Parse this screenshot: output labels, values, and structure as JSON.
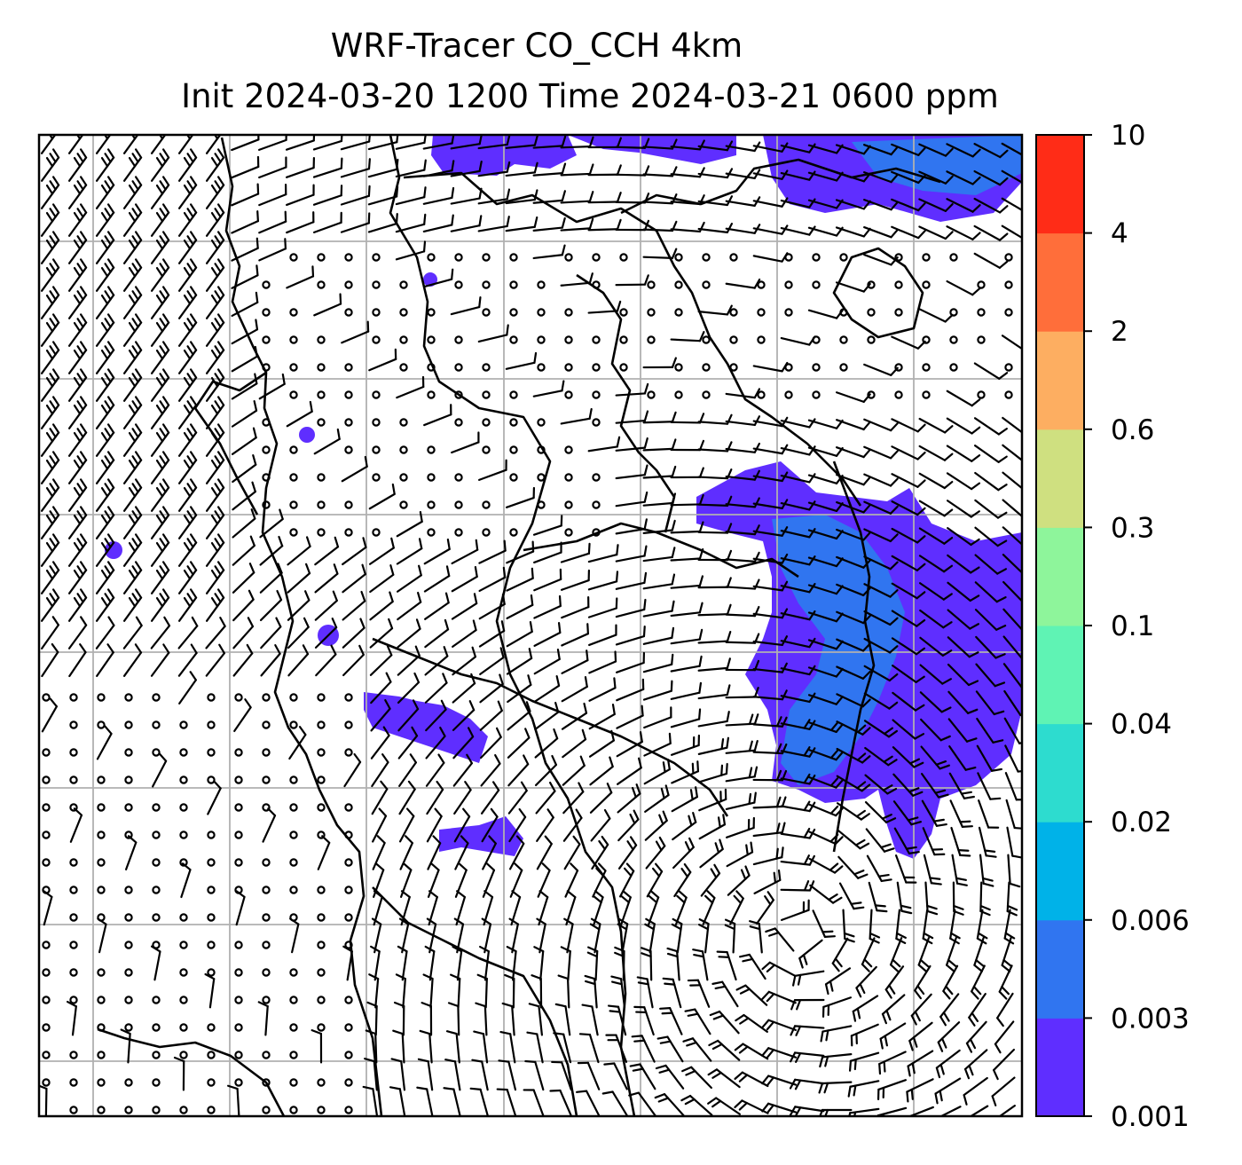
{
  "title": {
    "line1": "WRF-Tracer CO_CCH 4km",
    "line2": "Init 2024-03-20 1200 Time 2024-03-21 0600 ppm"
  },
  "colorbar": {
    "levels": [
      "0.001",
      "0.003",
      "0.006",
      "0.02",
      "0.04",
      "0.1",
      "0.3",
      "0.6",
      "2",
      "4",
      "10"
    ],
    "colors": [
      "#5f2eff",
      "#3075f0",
      "#00b2e8",
      "#2ddccf",
      "#5ff3b4",
      "#8ef59b",
      "#cfe080",
      "#fdae61",
      "#ff6e3a",
      "#ff2c17"
    ]
  },
  "map": {
    "plume_colors": {
      "low": "#5f2eff",
      "mid": "#3075f0"
    },
    "gridline_color": "#b0b0b0"
  }
}
